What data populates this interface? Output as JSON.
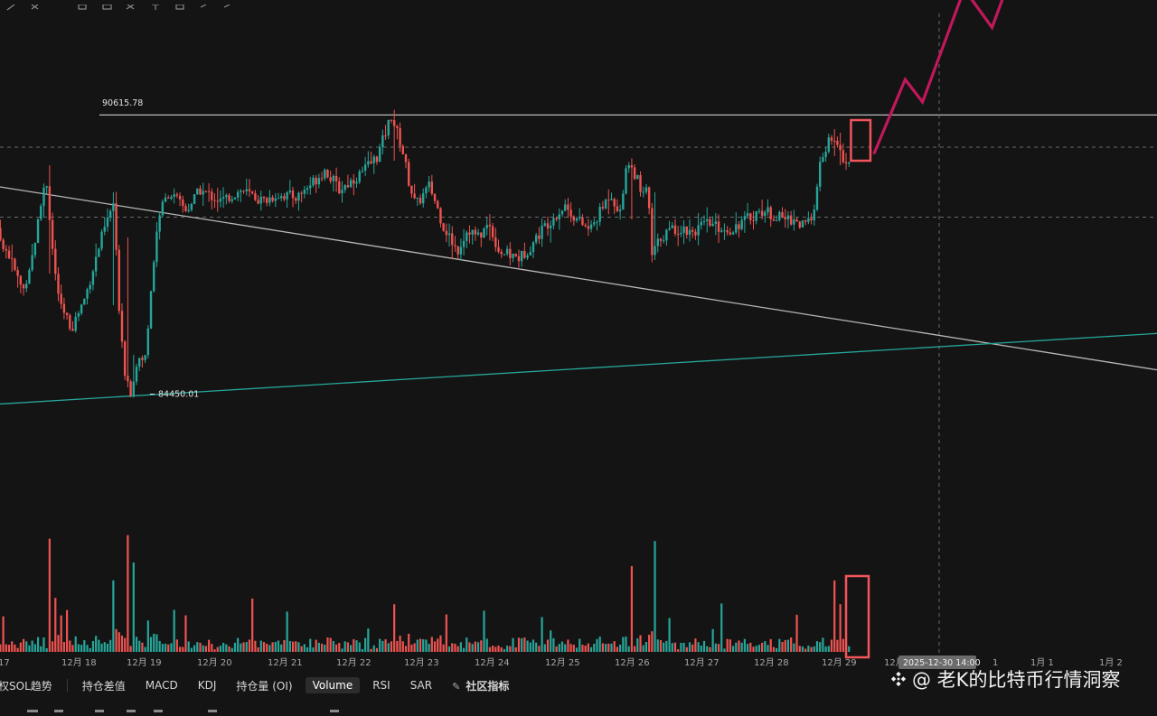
{
  "chart_data": {
    "type": "candlestick",
    "ylim": [
      81500,
      93500
    ],
    "x_ticks": [
      "17",
      "12月 18",
      "12月 19",
      "12月 20",
      "12月 21",
      "12月 22",
      "12月 23",
      "12月 24",
      "12月 25",
      "12月 26",
      "12月 27",
      "12月 28",
      "12月 29",
      "12月",
      "1",
      "1月 1",
      "1月 2"
    ],
    "crosshair_time_label": "2025-12-30 14:00",
    "price_annotations": {
      "resistance": "90615.78",
      "low_marker": "84450.01"
    },
    "horizontal_levels": [
      90615.78,
      89900,
      88350
    ],
    "projection_path": [
      {
        "t": 29.65,
        "p": 89750
      },
      {
        "t": 30.1,
        "p": 91400
      },
      {
        "t": 30.35,
        "p": 90900
      },
      {
        "t": 30.95,
        "p": 93400
      },
      {
        "t": 31.35,
        "p": 92550
      },
      {
        "t": 31.6,
        "p": 93600
      }
    ],
    "trendlines": [
      {
        "from": {
          "t": 16.75,
          "p": 89100
        },
        "to": {
          "t": 34.0,
          "p": 84900
        },
        "color": "#b7b7b7"
      },
      {
        "from": {
          "t": 16.75,
          "p": 84180
        },
        "to": {
          "t": 34.0,
          "p": 85800
        },
        "color": "#26a69a"
      }
    ],
    "highlight_boxes": [
      {
        "t0": 29.32,
        "t1": 29.6,
        "p0": 90500,
        "p1": 89600,
        "color": "#f2555a"
      }
    ],
    "series_rules": {
      "up_color": "#26a69a",
      "down_color": "#ef5350"
    }
  },
  "bottom_bar": {
    "items": [
      "权SOL趋势",
      "持仓差值",
      "MACD",
      "KDJ",
      "持仓量 (OI)",
      "Volume",
      "RSI",
      "SAR",
      "社区指标"
    ],
    "active": "Volume"
  },
  "watermark": {
    "text": "@ 老K的比特币行情洞察"
  },
  "colors": {
    "background": "#141414",
    "projection": "#c2185b",
    "highlight": "#f2555a",
    "up": "#26a69a",
    "down": "#ef5350"
  }
}
